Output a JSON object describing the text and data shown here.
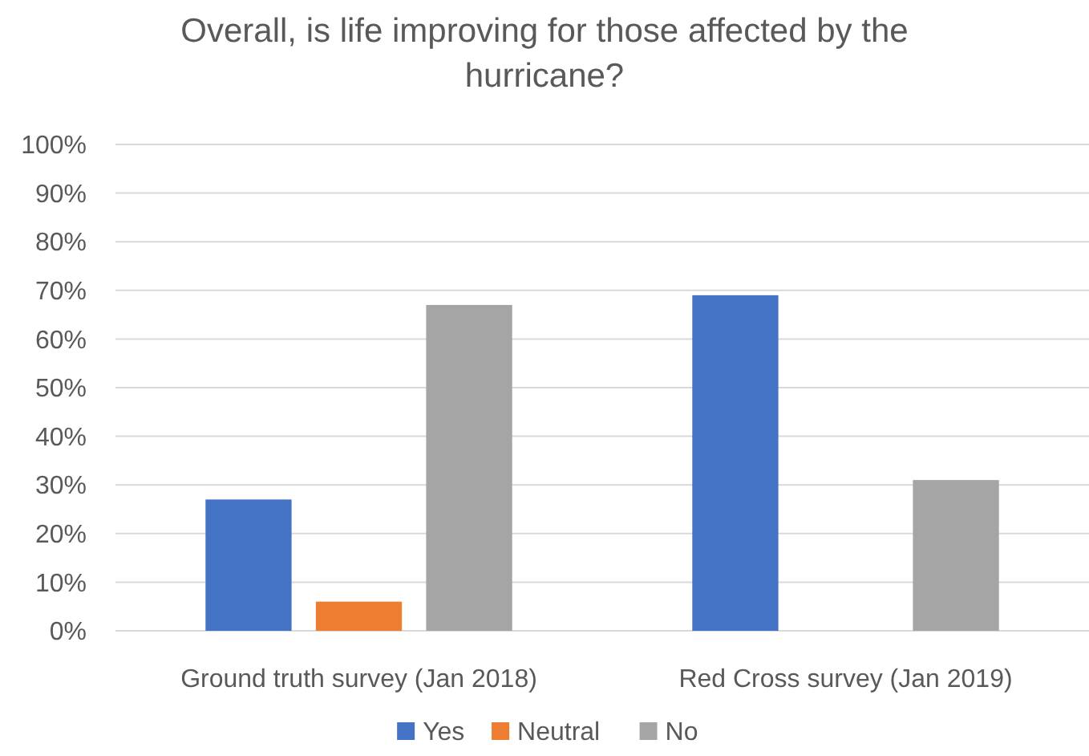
{
  "chart_data": {
    "type": "bar",
    "title": "Overall, is life improving for those affected by the hurricane?",
    "categories": [
      "Ground truth survey (Jan 2018)",
      "Red Cross survey (Jan 2019)"
    ],
    "series": [
      {
        "name": "Yes",
        "color": "#4472c4",
        "values": [
          27,
          69
        ]
      },
      {
        "name": "Neutral",
        "color": "#ed7d31",
        "values": [
          6,
          null
        ]
      },
      {
        "name": "No",
        "color": "#a5a5a5",
        "values": [
          67,
          31
        ]
      }
    ],
    "ylim": [
      0,
      100
    ],
    "yticks": [
      {
        "value": 0,
        "label": "0%"
      },
      {
        "value": 10,
        "label": "10%"
      },
      {
        "value": 20,
        "label": "20%"
      },
      {
        "value": 30,
        "label": "30%"
      },
      {
        "value": 40,
        "label": "40%"
      },
      {
        "value": 50,
        "label": "50%"
      },
      {
        "value": 60,
        "label": "60%"
      },
      {
        "value": 70,
        "label": "70%"
      },
      {
        "value": 80,
        "label": "80%"
      },
      {
        "value": 90,
        "label": "90%"
      },
      {
        "value": 100,
        "label": "100%"
      }
    ],
    "grid": "y",
    "legend": "bottom"
  }
}
